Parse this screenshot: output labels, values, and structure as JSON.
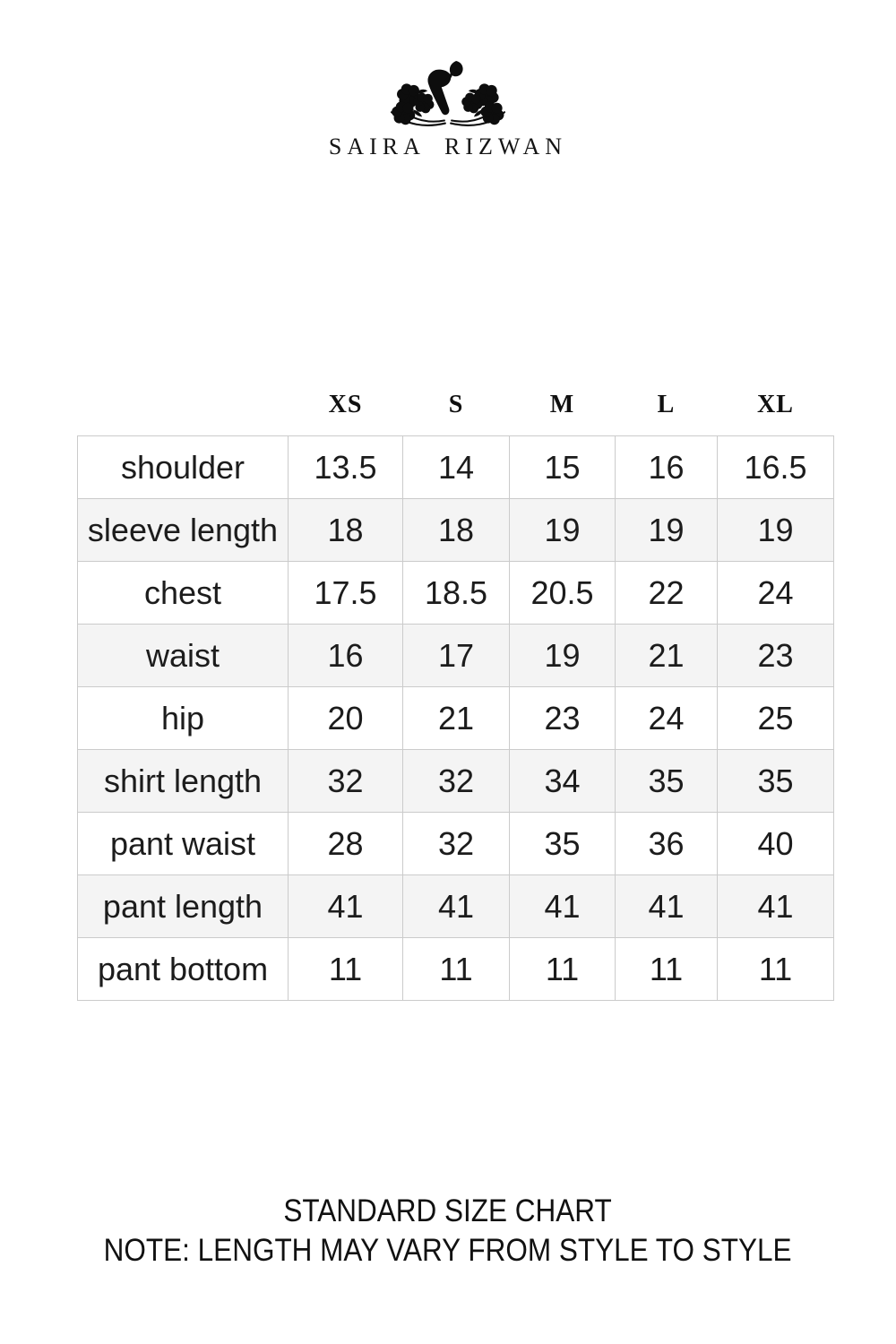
{
  "brand": {
    "name": "SAIRA RIZWAN",
    "emblem_icon": "floral-branches-calligraphy-emblem"
  },
  "chart_data": {
    "type": "table",
    "title": "STANDARD SIZE CHART",
    "note": "NOTE: LENGTH MAY VARY FROM STYLE TO STYLE",
    "columns": [
      "XS",
      "S",
      "M",
      "L",
      "XL"
    ],
    "rows": [
      {
        "label": "shoulder",
        "values": [
          13.5,
          14,
          15,
          16,
          16.5
        ]
      },
      {
        "label": "sleeve length",
        "values": [
          18,
          18,
          19,
          19,
          19
        ]
      },
      {
        "label": "chest",
        "values": [
          17.5,
          18.5,
          20.5,
          22,
          24
        ]
      },
      {
        "label": "waist",
        "values": [
          16,
          17,
          19,
          21,
          23
        ]
      },
      {
        "label": "hip",
        "values": [
          20,
          21,
          23,
          24,
          25
        ]
      },
      {
        "label": "shirt length",
        "values": [
          32,
          32,
          34,
          35,
          35
        ]
      },
      {
        "label": "pant waist",
        "values": [
          28,
          32,
          35,
          36,
          40
        ]
      },
      {
        "label": "pant length",
        "values": [
          41,
          41,
          41,
          41,
          41
        ]
      },
      {
        "label": "pant bottom",
        "values": [
          11,
          11,
          11,
          11,
          11
        ]
      }
    ],
    "layout": {
      "grid": true,
      "row_alternation": "odd-white-even-gray",
      "header_style": "serif-bold-no-border",
      "legend_position": "none"
    }
  },
  "colors": {
    "background": "#ffffff",
    "text": "#1b1b1b",
    "border": "#cbcbcb",
    "row_alt": "#f4f4f4",
    "ink": "#0d0d0d"
  }
}
